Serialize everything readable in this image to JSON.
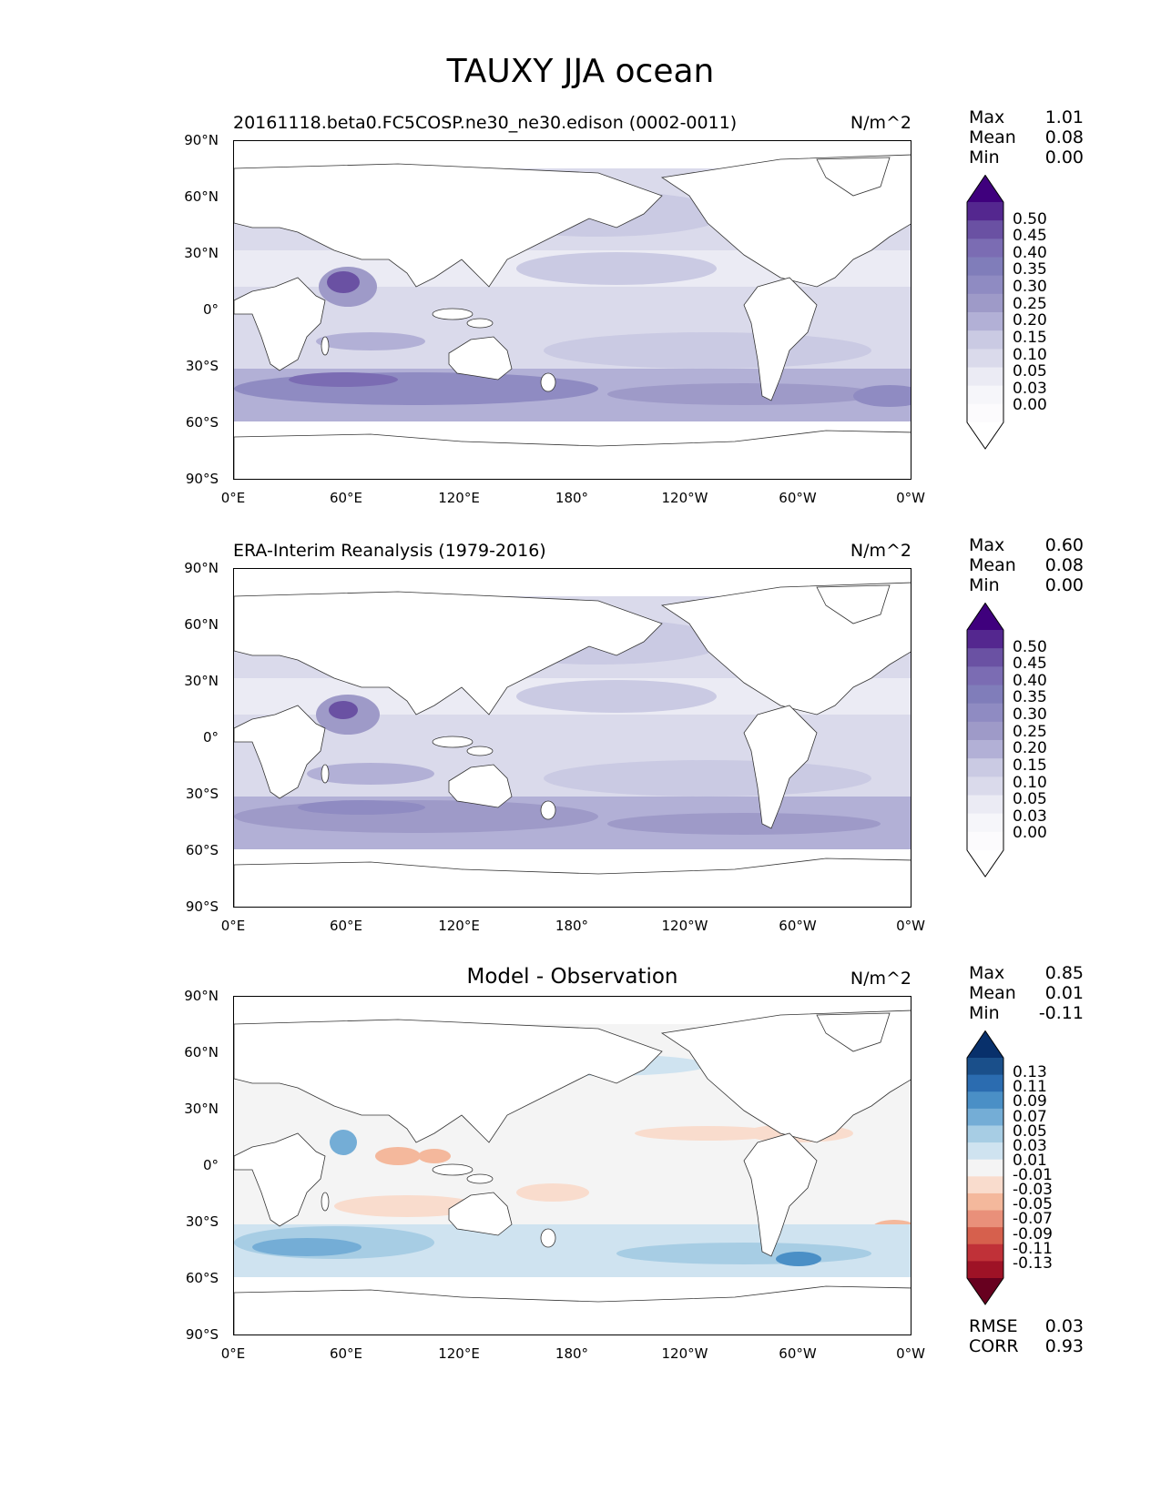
{
  "title": "TAUXY JJA ocean",
  "panels": [
    {
      "name": "model",
      "title": "20161118.beta0.FC5COSP.ne30_ne30.edison (0002-0011)",
      "title_style": "left",
      "units": "N/m^2",
      "stats": {
        "labels": [
          "Max",
          "Mean",
          "Min"
        ],
        "values": [
          "1.01",
          "0.08",
          "0.00"
        ]
      },
      "colorbar": {
        "labels": [
          "0.50",
          "0.45",
          "0.40",
          "0.35",
          "0.30",
          "0.25",
          "0.20",
          "0.15",
          "0.10",
          "0.05",
          "0.03",
          "0.00"
        ],
        "colors": [
          "#3f007d",
          "#54278f",
          "#6a51a3",
          "#7b6cb3",
          "#807dba",
          "#8f8bc2",
          "#9e9ac8",
          "#b2b0d6",
          "#cacae3",
          "#dadaeb",
          "#ebebf4",
          "#f6f6fa",
          "#fcfbfd",
          "#ffffff"
        ]
      }
    },
    {
      "name": "obs",
      "title": "ERA-Interim Reanalysis (1979-2016)",
      "title_style": "left",
      "units": "N/m^2",
      "stats": {
        "labels": [
          "Max",
          "Mean",
          "Min"
        ],
        "values": [
          "0.60",
          "0.08",
          "0.00"
        ]
      },
      "colorbar": {
        "labels": [
          "0.50",
          "0.45",
          "0.40",
          "0.35",
          "0.30",
          "0.25",
          "0.20",
          "0.15",
          "0.10",
          "0.05",
          "0.03",
          "0.00"
        ],
        "colors": [
          "#3f007d",
          "#54278f",
          "#6a51a3",
          "#7b6cb3",
          "#807dba",
          "#8f8bc2",
          "#9e9ac8",
          "#b2b0d6",
          "#cacae3",
          "#dadaeb",
          "#ebebf4",
          "#f6f6fa",
          "#fcfbfd",
          "#ffffff"
        ]
      }
    },
    {
      "name": "diff",
      "title": "Model - Observation",
      "title_style": "center",
      "units": "N/m^2",
      "stats": {
        "labels": [
          "Max",
          "Mean",
          "Min"
        ],
        "values": [
          "0.85",
          "0.01",
          "-0.11"
        ]
      },
      "colorbar": {
        "labels": [
          "0.13",
          "0.11",
          "0.09",
          "0.07",
          "0.05",
          "0.03",
          "0.01",
          "-0.01",
          "-0.03",
          "-0.05",
          "-0.07",
          "-0.09",
          "-0.11",
          "-0.13"
        ],
        "colors": [
          "#08306b",
          "#1a4f8a",
          "#2b6cb0",
          "#4a8fc6",
          "#74add6",
          "#a7cde4",
          "#cfe3f0",
          "#f4f4f4",
          "#f9dccd",
          "#f4b89c",
          "#e9907a",
          "#d6604d",
          "#c03138",
          "#9e1226",
          "#67001f"
        ]
      },
      "error_stats": {
        "labels": [
          "RMSE",
          "CORR"
        ],
        "values": [
          "0.03",
          "0.93"
        ]
      }
    }
  ],
  "axes": {
    "lat_ticks": [
      "90°N",
      "60°N",
      "30°N",
      "0°",
      "30°S",
      "60°S",
      "90°S"
    ],
    "lon_ticks": [
      "0°E",
      "60°E",
      "120°E",
      "180°",
      "120°W",
      "60°W",
      "0°W"
    ]
  }
}
